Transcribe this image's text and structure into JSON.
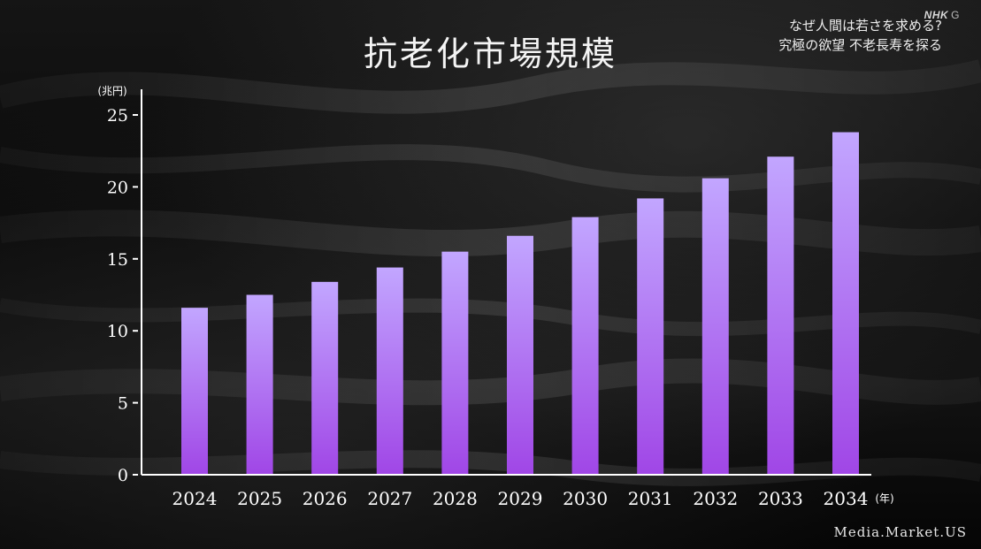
{
  "title": "抗老化市場規模",
  "program": {
    "line1": "なぜ人間は若さを求める?",
    "line2": "究極の欲望 不老長寿を探る"
  },
  "logo": {
    "brand": "NHK",
    "channel": "G"
  },
  "source": "Media.Market.US",
  "colors": {
    "bar_top": "#c2a6ff",
    "bar_bottom": "#a046e6",
    "axis": "#ffffff",
    "text": "#ffffff"
  },
  "chart_data": {
    "type": "bar",
    "title": "抗老化市場規模",
    "ylabel": "(兆円)",
    "xlabel": "(年)",
    "categories": [
      "2024",
      "2025",
      "2026",
      "2027",
      "2028",
      "2029",
      "2030",
      "2031",
      "2032",
      "2033",
      "2034"
    ],
    "values": [
      11.6,
      12.5,
      13.4,
      14.4,
      15.5,
      16.6,
      17.9,
      19.2,
      20.6,
      22.1,
      23.8
    ],
    "yticks": [
      0,
      5,
      10,
      15,
      20,
      25
    ],
    "ylim": [
      0,
      25
    ],
    "grid": false,
    "legend": "none"
  }
}
